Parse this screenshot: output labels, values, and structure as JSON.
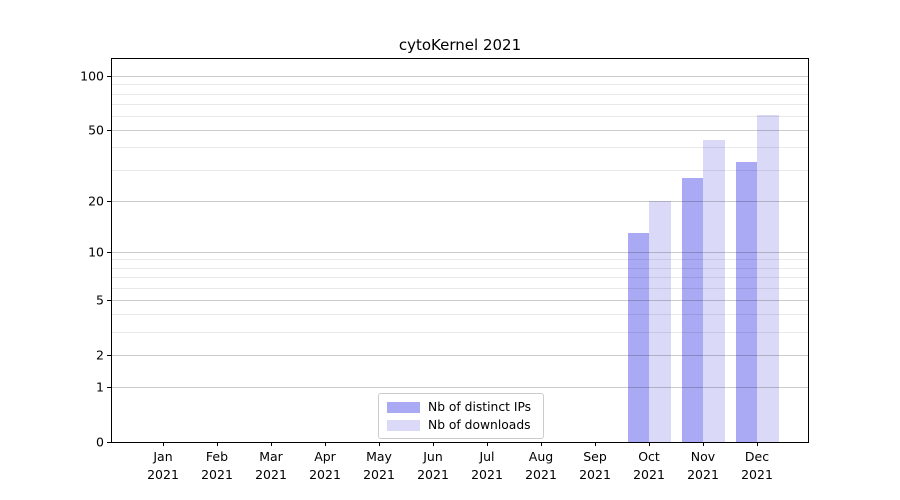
{
  "chart_data": {
    "type": "bar",
    "title": "cytoKernel 2021",
    "x_categories": [
      "Jan",
      "Feb",
      "Mar",
      "Apr",
      "May",
      "Jun",
      "Jul",
      "Aug",
      "Sep",
      "Oct",
      "Nov",
      "Dec"
    ],
    "x_category_year": "2021",
    "series": [
      {
        "name": "Nb of distinct IPs",
        "color": "#a9a9f4",
        "values": [
          null,
          null,
          null,
          null,
          null,
          null,
          null,
          null,
          null,
          13,
          27,
          33
        ]
      },
      {
        "name": "Nb of downloads",
        "color": "#dadaf8",
        "values": [
          null,
          null,
          null,
          null,
          null,
          null,
          null,
          null,
          null,
          20,
          44,
          61
        ]
      }
    ],
    "yscale": "log1p",
    "ylim": [
      0,
      125
    ],
    "y_major_ticks": [
      0,
      1,
      2,
      5,
      10,
      20,
      50,
      100
    ],
    "y_minor_gridlines": [
      3,
      4,
      6,
      7,
      8,
      9,
      30,
      40,
      60,
      70,
      80,
      90
    ],
    "grid": "on",
    "grid_above_bars": true,
    "legend_position": "lower center",
    "colors": {
      "bar_distinct_ips": "#a9a9f4",
      "bar_downloads": "#dadaf8",
      "gridline_major": "#cccccc",
      "gridline_minor": "#e9e9e9",
      "axis_line": "#000000",
      "text": "#000000",
      "background": "#ffffff"
    }
  }
}
